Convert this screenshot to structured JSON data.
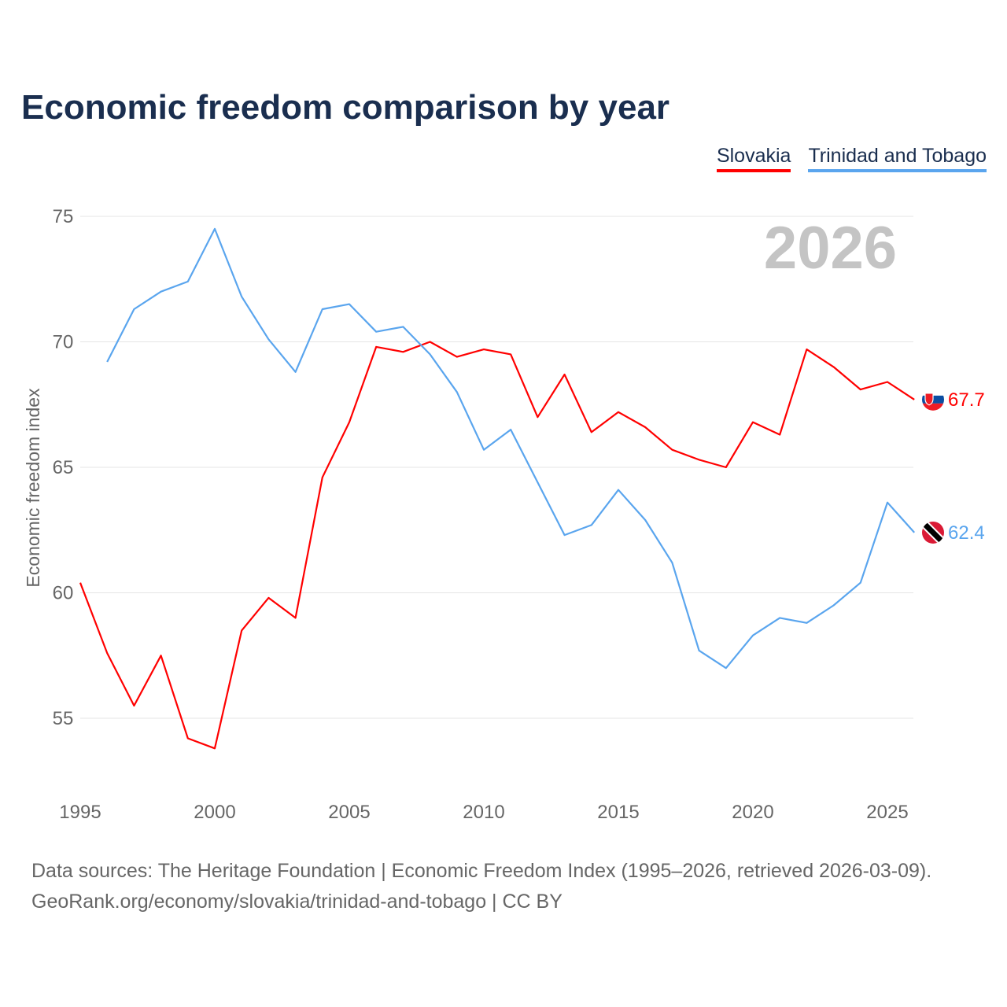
{
  "title": "Economic freedom comparison by year",
  "source_line1": "Data sources: The Heritage Foundation | Economic Freedom Index (1995–2026, retrieved 2026-03-09).",
  "source_line2": "GeoRank.org/economy/slovakia/trinidad-and-tobago | CC BY",
  "chart_data": {
    "type": "line",
    "title": "Economic freedom comparison by year",
    "ylabel": "Economic freedom index",
    "xlabel": "",
    "year_watermark": "2026",
    "ylim": [
      52,
      76
    ],
    "xlim": [
      1995,
      2026
    ],
    "yticks": [
      "55",
      "60",
      "65",
      "70",
      "75"
    ],
    "xticks": [
      "1995",
      "2000",
      "2005",
      "2010",
      "2015",
      "2020",
      "2025"
    ],
    "grid": true,
    "legend_position": "top-right",
    "series": [
      {
        "name": "Slovakia",
        "color": "#ff0000",
        "end_label": "67.7",
        "flag": "slovakia-flag",
        "x": [
          1995,
          1996,
          1997,
          1998,
          1999,
          2000,
          2001,
          2002,
          2003,
          2004,
          2005,
          2006,
          2007,
          2008,
          2009,
          2010,
          2011,
          2012,
          2013,
          2014,
          2015,
          2016,
          2017,
          2018,
          2019,
          2020,
          2021,
          2022,
          2023,
          2024,
          2025,
          2026
        ],
        "values": [
          60.4,
          57.6,
          55.5,
          57.5,
          54.2,
          53.8,
          58.5,
          59.8,
          59.0,
          64.6,
          66.8,
          69.8,
          69.6,
          70.0,
          69.4,
          69.7,
          69.5,
          67.0,
          68.7,
          66.4,
          67.2,
          66.6,
          65.7,
          65.3,
          65.0,
          66.8,
          66.3,
          69.7,
          69.0,
          68.1,
          68.4,
          67.7
        ]
      },
      {
        "name": "Trinidad and Tobago",
        "color": "#5aa5ee",
        "end_label": "62.4",
        "flag": "trinidad-and-tobago-flag",
        "x": [
          1996,
          1997,
          1998,
          1999,
          2000,
          2001,
          2002,
          2003,
          2004,
          2005,
          2006,
          2007,
          2008,
          2009,
          2010,
          2011,
          2012,
          2013,
          2014,
          2015,
          2016,
          2017,
          2018,
          2019,
          2020,
          2021,
          2022,
          2023,
          2024,
          2025,
          2026
        ],
        "values": [
          69.2,
          71.3,
          72.0,
          72.4,
          74.5,
          71.8,
          70.1,
          68.8,
          71.3,
          71.5,
          70.4,
          70.6,
          69.5,
          68.0,
          65.7,
          66.5,
          64.4,
          62.3,
          62.7,
          64.1,
          62.9,
          61.2,
          57.7,
          57.0,
          58.3,
          59.0,
          58.8,
          59.5,
          60.4,
          63.6,
          62.4
        ]
      }
    ]
  }
}
